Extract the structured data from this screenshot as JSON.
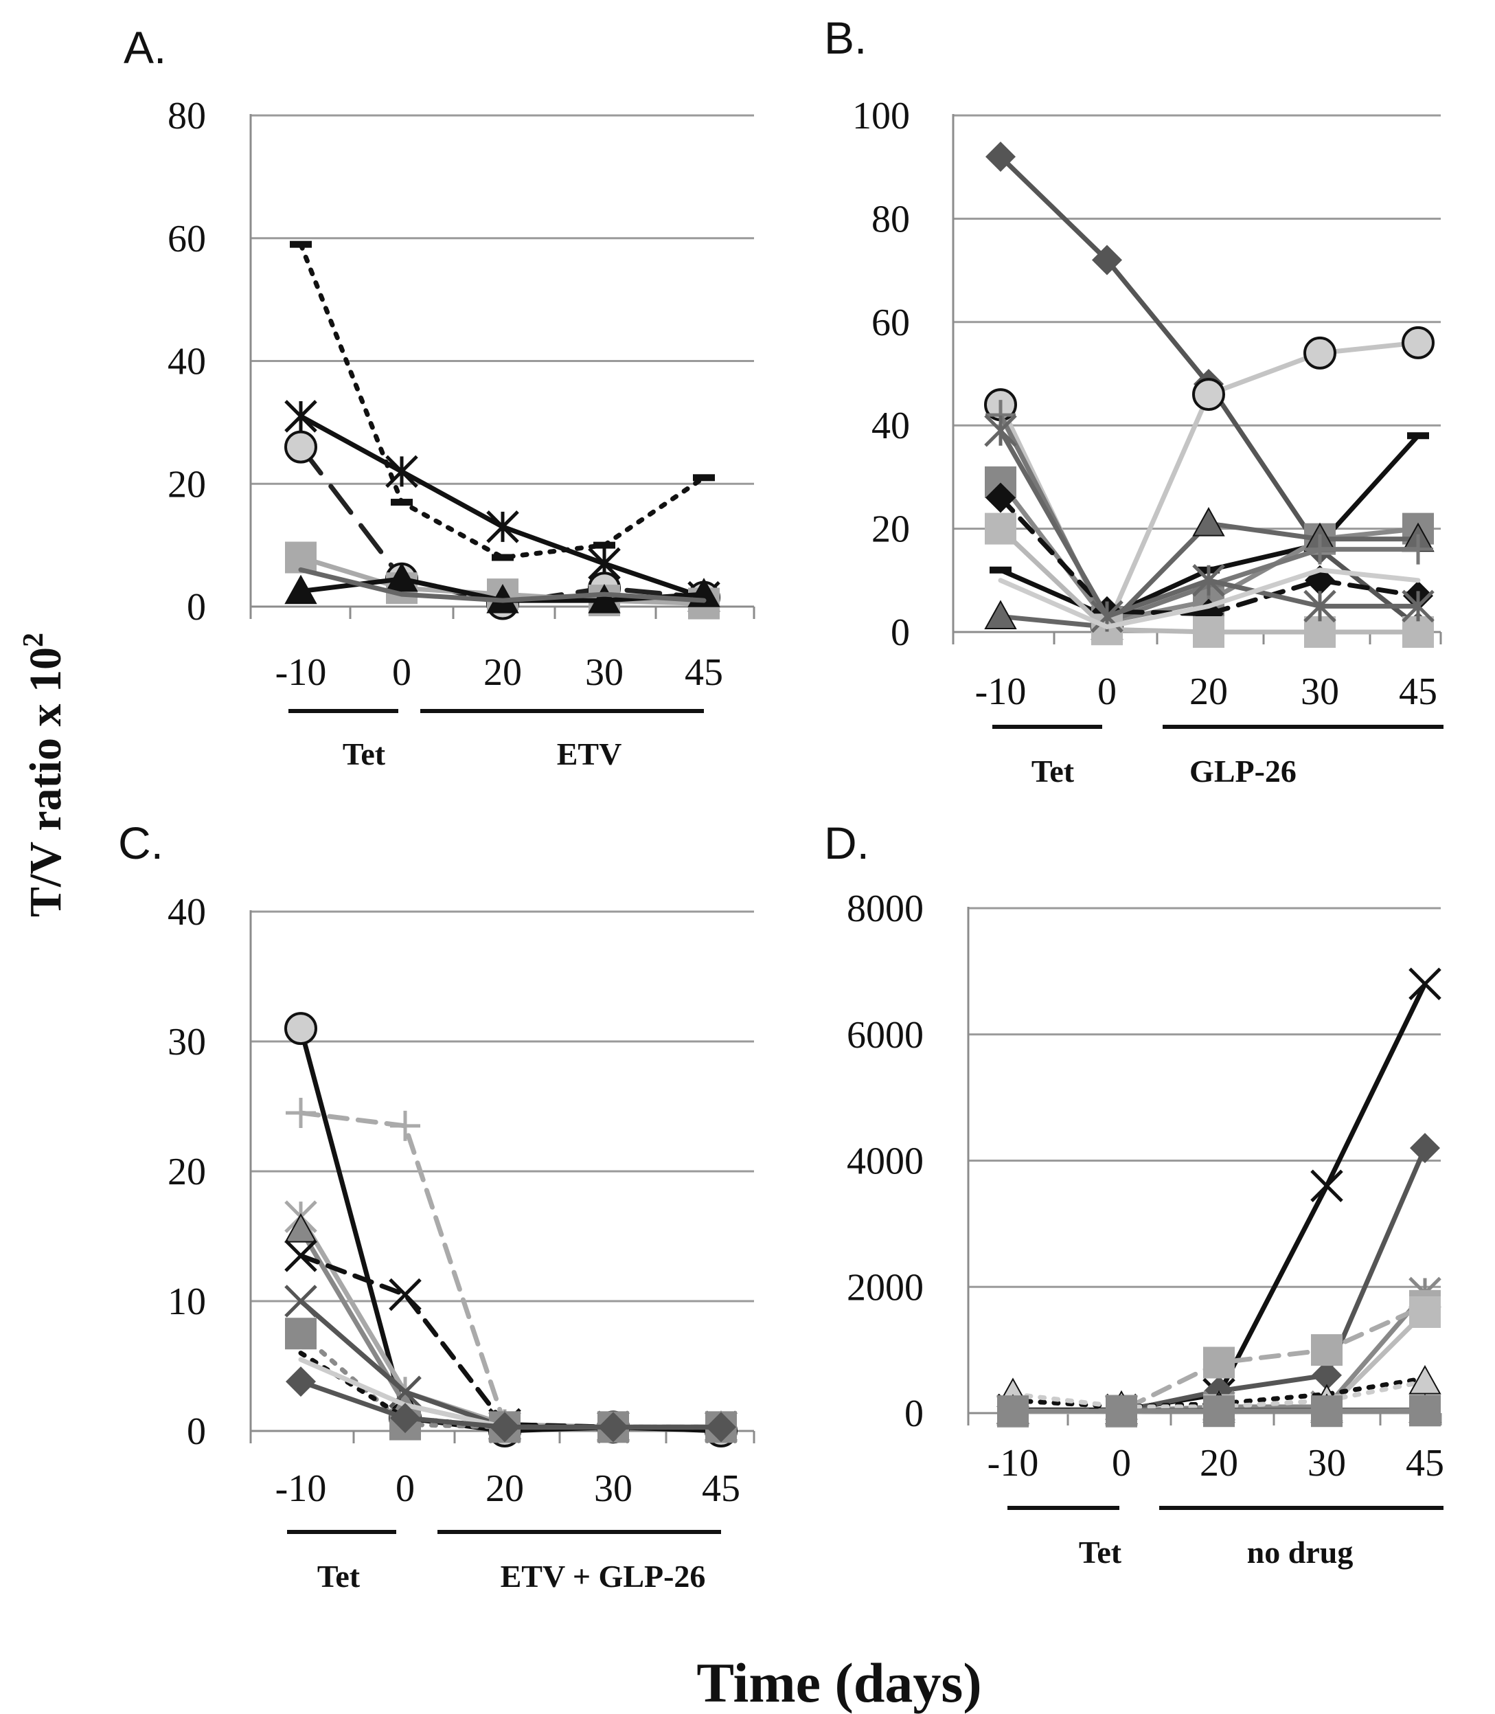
{
  "figure": {
    "y_axis_title": "T/V ratio x 10",
    "y_axis_title_superscript": "2",
    "x_axis_title": "Time (days)"
  },
  "chart_data": [
    {
      "panel": "A.",
      "type": "line",
      "ylim": [
        0,
        80
      ],
      "yticks": [
        "0",
        "20",
        "40",
        "60",
        "80"
      ],
      "categories": [
        "-10",
        "0",
        "20",
        "30",
        "45"
      ],
      "phases": [
        {
          "label": "Tet",
          "from": 0,
          "to": 1
        },
        {
          "label": "ETV",
          "from": 2,
          "to": 4
        }
      ],
      "series": [
        {
          "name": "dotted-dash",
          "color": "#111111",
          "style": "dot",
          "marker": "dash",
          "values": [
            59,
            17,
            8,
            10,
            21
          ]
        },
        {
          "name": "star",
          "color": "#111111",
          "style": "solid",
          "marker": "star",
          "values": [
            31,
            22,
            13,
            7,
            1.5
          ]
        },
        {
          "name": "circle",
          "color": "#222222",
          "style": "longdash",
          "marker": "circle",
          "values": [
            26,
            4.5,
            0.5,
            3,
            1.5
          ]
        },
        {
          "name": "square",
          "color": "#aaaaaa",
          "style": "solid",
          "marker": "square",
          "values": [
            8,
            3,
            2,
            1,
            0.5
          ]
        },
        {
          "name": "triangle",
          "color": "#111111",
          "style": "solid",
          "marker": "triangle",
          "values": [
            2.5,
            4.5,
            1,
            1,
            2
          ]
        },
        {
          "name": "dark-gray",
          "color": "#666666",
          "style": "solid",
          "marker": "none",
          "values": [
            6,
            2,
            1,
            2,
            1
          ]
        }
      ]
    },
    {
      "panel": "B.",
      "type": "line",
      "ylim": [
        0,
        100
      ],
      "yticks": [
        "0",
        "20",
        "40",
        "60",
        "80",
        "100"
      ],
      "categories": [
        "-10",
        "0",
        "20",
        "30",
        "45"
      ],
      "phases": [
        {
          "label": "Tet",
          "from": 0,
          "to": 1
        },
        {
          "label": "GLP-26",
          "from": 2,
          "to": 4
        }
      ],
      "series": [
        {
          "name": "diamond",
          "color": "#555555",
          "style": "solid",
          "marker": "diamond",
          "values": [
            92,
            72,
            48,
            16,
            1
          ]
        },
        {
          "name": "circle",
          "color": "#c4c4c4",
          "style": "solid",
          "marker": "circle",
          "values": [
            44,
            1,
            46,
            54,
            56
          ]
        },
        {
          "name": "dash-marker",
          "color": "#111111",
          "style": "solid",
          "marker": "dash",
          "values": [
            12,
            3,
            12,
            17,
            38
          ]
        },
        {
          "name": "square-dark",
          "color": "#888888",
          "style": "solid",
          "marker": "square",
          "values": [
            29,
            2,
            6,
            18,
            20
          ]
        },
        {
          "name": "triangle",
          "color": "#666666",
          "style": "solid",
          "marker": "triangle",
          "values": [
            3,
            1,
            21,
            18,
            18
          ]
        },
        {
          "name": "plus",
          "color": "#777777",
          "style": "solid",
          "marker": "plus",
          "values": [
            42,
            2,
            9,
            16,
            16
          ]
        },
        {
          "name": "diamond-dashed",
          "color": "#111111",
          "style": "dash",
          "marker": "diamond",
          "values": [
            26,
            4,
            3.5,
            10,
            7
          ]
        },
        {
          "name": "square-light",
          "color": "#b8b8b8",
          "style": "solid",
          "marker": "square",
          "values": [
            20,
            0.5,
            0,
            0,
            0
          ]
        },
        {
          "name": "star",
          "color": "#666666",
          "style": "solid",
          "marker": "star",
          "values": [
            39,
            3,
            10,
            5,
            5
          ]
        },
        {
          "name": "light",
          "color": "#cccccc",
          "style": "solid",
          "marker": "none",
          "values": [
            10,
            1,
            5,
            12,
            10
          ]
        }
      ]
    },
    {
      "panel": "C.",
      "type": "line",
      "ylim": [
        0,
        40
      ],
      "yticks": [
        "0",
        "10",
        "20",
        "30",
        "40"
      ],
      "categories": [
        "-10",
        "0",
        "20",
        "30",
        "45"
      ],
      "phases": [
        {
          "label": "Tet",
          "from": 0,
          "to": 1
        },
        {
          "label": "ETV + GLP-26",
          "from": 2,
          "to": 4
        }
      ],
      "series": [
        {
          "name": "circle",
          "color": "#111111",
          "style": "solid",
          "marker": "circle",
          "values": [
            31,
            1,
            0,
            0.3,
            0
          ]
        },
        {
          "name": "plus-dashed",
          "color": "#aaaaaa",
          "style": "dash",
          "marker": "plus",
          "values": [
            24.5,
            23.5,
            0.5,
            0.3,
            0.3
          ]
        },
        {
          "name": "star",
          "color": "#a8a8a8",
          "style": "solid",
          "marker": "star",
          "values": [
            16.5,
            3,
            0.5,
            0.3,
            0.3
          ]
        },
        {
          "name": "triangle",
          "color": "#888888",
          "style": "solid",
          "marker": "triangle",
          "values": [
            15.5,
            2,
            0.3,
            0.3,
            0.3
          ]
        },
        {
          "name": "x-dashed",
          "color": "#111111",
          "style": "dash",
          "marker": "x",
          "values": [
            13.5,
            10.5,
            0.5,
            0.3,
            0.3
          ]
        },
        {
          "name": "x",
          "color": "#555555",
          "style": "solid",
          "marker": "x",
          "values": [
            10,
            3,
            0.3,
            0.3,
            0.3
          ]
        },
        {
          "name": "square-dotted",
          "color": "#8a8a8a",
          "style": "dot",
          "marker": "square",
          "values": [
            7.5,
            0.5,
            0.3,
            0.3,
            0.3
          ]
        },
        {
          "name": "dotted",
          "color": "#111111",
          "style": "dot",
          "marker": "none",
          "values": [
            6,
            1,
            0.3,
            0.3,
            0.3
          ]
        },
        {
          "name": "light",
          "color": "#cccccc",
          "style": "solid",
          "marker": "none",
          "values": [
            5.5,
            2,
            0.3,
            0.3,
            0.3
          ]
        },
        {
          "name": "diamond",
          "color": "#555555",
          "style": "solid",
          "marker": "diamond",
          "values": [
            3.8,
            1,
            0.3,
            0.3,
            0.3
          ]
        }
      ]
    },
    {
      "panel": "D.",
      "type": "line",
      "ylim": [
        0,
        8000
      ],
      "yticks": [
        "0",
        "2000",
        "4000",
        "6000",
        "8000"
      ],
      "categories": [
        "-10",
        "0",
        "20",
        "30",
        "45"
      ],
      "phases": [
        {
          "label": "Tet",
          "from": 0,
          "to": 1
        },
        {
          "label": "no drug",
          "from": 2,
          "to": 4
        }
      ],
      "series": [
        {
          "name": "x",
          "color": "#111111",
          "style": "solid",
          "marker": "x",
          "values": [
            50,
            50,
            300,
            3600,
            6800
          ]
        },
        {
          "name": "diamond",
          "color": "#555555",
          "style": "solid",
          "marker": "diamond",
          "values": [
            30,
            30,
            350,
            600,
            4200
          ]
        },
        {
          "name": "star",
          "color": "#888888",
          "style": "solid",
          "marker": "star",
          "values": [
            30,
            30,
            100,
            100,
            1900
          ]
        },
        {
          "name": "square-dashed",
          "color": "#aaaaaa",
          "style": "dash",
          "marker": "square",
          "values": [
            30,
            40,
            800,
            1000,
            1700
          ]
        },
        {
          "name": "square-light",
          "color": "#bbbbbb",
          "style": "solid",
          "marker": "square",
          "values": [
            20,
            20,
            50,
            50,
            1600
          ]
        },
        {
          "name": "dotted",
          "color": "#111111",
          "style": "dot",
          "marker": "none",
          "values": [
            200,
            100,
            150,
            300,
            550
          ]
        },
        {
          "name": "triangle-dotted",
          "color": "#cccccc",
          "style": "dot",
          "marker": "triangle",
          "values": [
            300,
            100,
            100,
            200,
            500
          ]
        },
        {
          "name": "triangle",
          "color": "#666666",
          "style": "solid",
          "marker": "triangle",
          "values": [
            40,
            30,
            50,
            50,
            50
          ]
        },
        {
          "name": "square-dark",
          "color": "#888888",
          "style": "solid",
          "marker": "square",
          "values": [
            30,
            30,
            30,
            30,
            40
          ]
        }
      ]
    }
  ]
}
